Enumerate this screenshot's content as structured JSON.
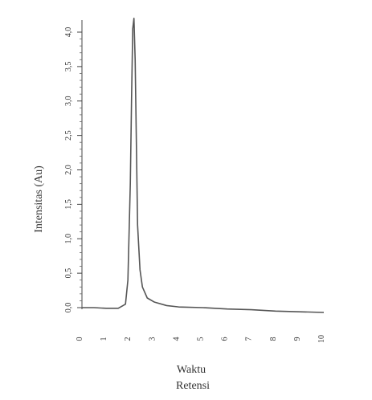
{
  "chart_data": {
    "type": "line",
    "title": "",
    "xlabel": "Waktu Retensi",
    "xlabel_lines": [
      "Waktu",
      "Retensi"
    ],
    "ylabel": "Intensitas (Au)",
    "xlim": [
      0,
      10
    ],
    "ylim": [
      -0.3,
      4.2
    ],
    "x_ticks": [
      "0",
      "1",
      "2",
      "3",
      "4",
      "5",
      "6",
      "7",
      "8",
      "9",
      "10"
    ],
    "y_ticks": [
      {
        "value": 0.0,
        "label": "0,0"
      },
      {
        "value": 0.5,
        "label": "0,5"
      },
      {
        "value": 1.0,
        "label": "1,0"
      },
      {
        "value": 1.5,
        "label": "1,5"
      },
      {
        "value": 2.0,
        "label": "2,0"
      },
      {
        "value": 2.5,
        "label": "2,5"
      },
      {
        "value": 3.0,
        "label": "3,0"
      },
      {
        "value": 3.5,
        "label": "3,5"
      },
      {
        "value": 4.0,
        "label": "4,0"
      }
    ],
    "grid": false,
    "legend": "none",
    "line_color": "#555555",
    "series": [
      {
        "x": [
          0.0,
          0.5,
          1.0,
          1.5,
          1.8,
          1.9,
          2.0,
          2.05,
          2.1,
          2.15,
          2.2,
          2.25,
          2.3,
          2.4,
          2.5,
          2.7,
          3.0,
          3.5,
          4.0,
          5.0,
          6.0,
          7.0,
          8.0,
          9.0,
          10.0
        ],
        "y": [
          0.0,
          0.0,
          -0.01,
          -0.01,
          0.05,
          0.4,
          1.8,
          3.0,
          4.05,
          4.2,
          3.6,
          2.4,
          1.2,
          0.55,
          0.3,
          0.14,
          0.08,
          0.03,
          0.01,
          0.0,
          -0.02,
          -0.03,
          -0.05,
          -0.06,
          -0.07
        ]
      }
    ]
  }
}
